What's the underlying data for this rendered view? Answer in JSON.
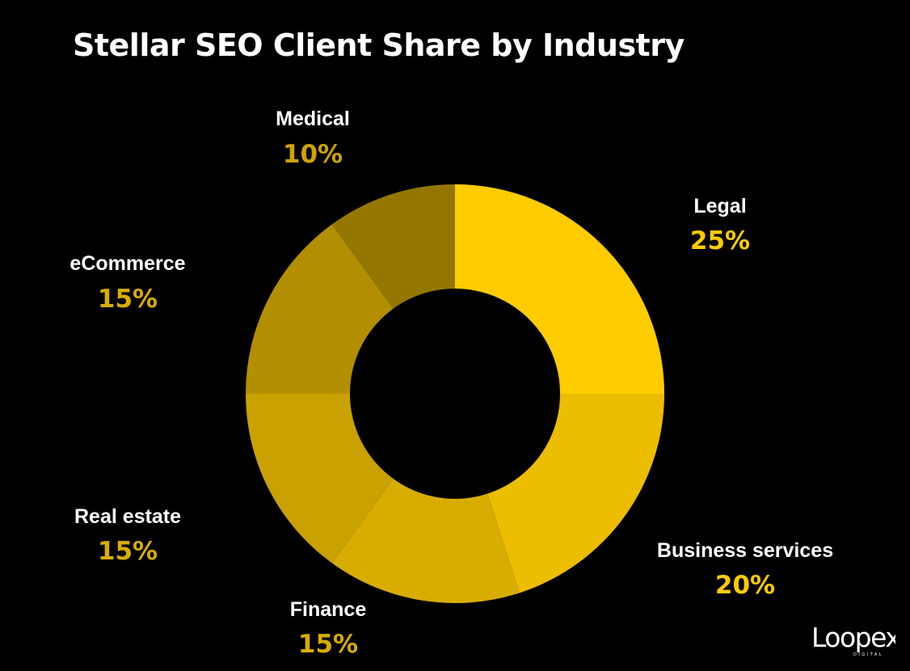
{
  "chart_data": {
    "type": "pie",
    "title": "Stellar SEO Client Share by Industry",
    "donut": true,
    "slices": [
      {
        "label": "Legal",
        "value": 25,
        "value_label": "25%",
        "color": "#FFCC00"
      },
      {
        "label": "Business services",
        "value": 20,
        "value_label": "20%",
        "color": "#EDBD00"
      },
      {
        "label": "Finance",
        "value": 15,
        "value_label": "15%",
        "color": "#D9AD00"
      },
      {
        "label": "Real estate",
        "value": 15,
        "value_label": "15%",
        "color": "#C9A100"
      },
      {
        "label": "eCommerce",
        "value": 15,
        "value_label": "15%",
        "color": "#B38F00"
      },
      {
        "label": "Medical",
        "value": 10,
        "value_label": "10%",
        "color": "#947700"
      }
    ],
    "value_text_colors": {
      "Legal": "#FFCC00",
      "Business services": "#FFCC00",
      "Finance": "#D9AD00",
      "Real estate": "#D9AD00",
      "eCommerce": "#D9AD00",
      "Medical": "#CDA400"
    }
  },
  "brand": {
    "name": "Loopex",
    "sub": "DIGITAL"
  }
}
